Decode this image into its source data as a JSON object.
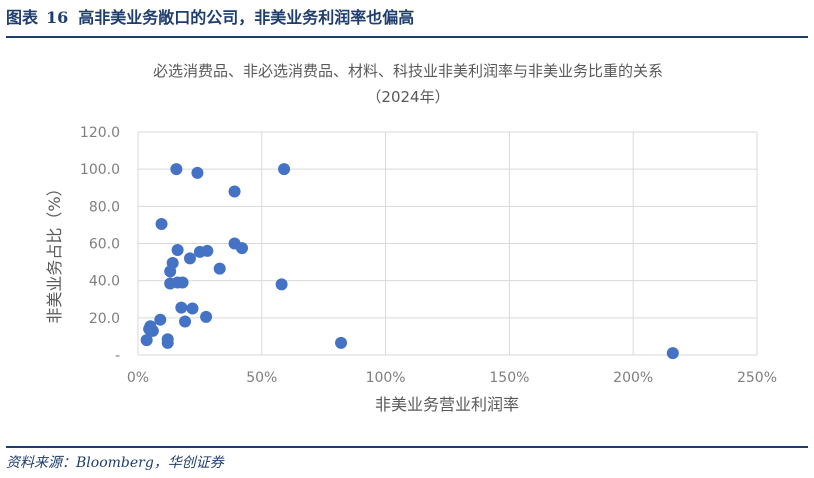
{
  "figure": {
    "label": "图表",
    "number": "16",
    "title": "高非美业务敞口的公司，非美业务利润率也偏高"
  },
  "source": "资料来源：Bloomberg，华创证券",
  "colors": {
    "accent": "#1f3d6e",
    "point": "#4472c4",
    "grid": "#d9d9d9",
    "tick_text": "#7f7f7f"
  },
  "chart_data": {
    "type": "scatter",
    "title": "必选消费品、非必选消费品、材料、科技业非美利润率与非美业务比重的关系",
    "subtitle": "（2024年）",
    "xlabel": "非美业务营业利润率",
    "ylabel": "非美业务占比（%）",
    "xlim": [
      0,
      250
    ],
    "ylim": [
      0,
      120
    ],
    "x_ticks": [
      0,
      50,
      100,
      150,
      200,
      250
    ],
    "x_tick_labels": [
      "0%",
      "50%",
      "100%",
      "150%",
      "200%",
      "250%"
    ],
    "y_ticks": [
      0,
      20,
      40,
      60,
      80,
      100,
      120
    ],
    "y_tick_labels": [
      "-",
      "20.0",
      "40.0",
      "60.0",
      "80.0",
      "100.0",
      "120.0"
    ],
    "grid": true,
    "legend": "none",
    "points": [
      {
        "x": 15.5,
        "y": 100
      },
      {
        "x": 59,
        "y": 100
      },
      {
        "x": 24,
        "y": 98
      },
      {
        "x": 39,
        "y": 88
      },
      {
        "x": 9.5,
        "y": 70.5
      },
      {
        "x": 39,
        "y": 60
      },
      {
        "x": 42,
        "y": 57.5
      },
      {
        "x": 16,
        "y": 56.5
      },
      {
        "x": 25,
        "y": 55.5
      },
      {
        "x": 28,
        "y": 56
      },
      {
        "x": 21,
        "y": 52
      },
      {
        "x": 14,
        "y": 49.5
      },
      {
        "x": 33,
        "y": 46.5
      },
      {
        "x": 13,
        "y": 45
      },
      {
        "x": 13,
        "y": 38.5
      },
      {
        "x": 16,
        "y": 39
      },
      {
        "x": 18,
        "y": 39
      },
      {
        "x": 58,
        "y": 38
      },
      {
        "x": 17.5,
        "y": 25.5
      },
      {
        "x": 22,
        "y": 25
      },
      {
        "x": 27.5,
        "y": 20.5
      },
      {
        "x": 19,
        "y": 18
      },
      {
        "x": 9,
        "y": 19
      },
      {
        "x": 5,
        "y": 15.5
      },
      {
        "x": 4.5,
        "y": 14
      },
      {
        "x": 6,
        "y": 13
      },
      {
        "x": 3.5,
        "y": 8
      },
      {
        "x": 12,
        "y": 8.5
      },
      {
        "x": 12,
        "y": 6.5
      },
      {
        "x": 82,
        "y": 6.5
      },
      {
        "x": 216,
        "y": 1
      }
    ]
  }
}
